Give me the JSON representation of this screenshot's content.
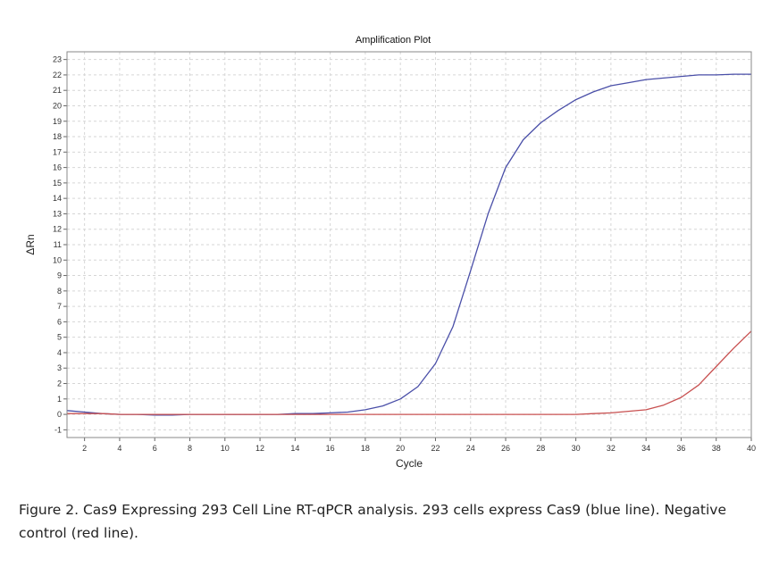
{
  "chart_data": {
    "type": "line",
    "title": "Amplification Plot",
    "xlabel": "Cycle",
    "ylabel": "ΔRn",
    "xlim": [
      1,
      40
    ],
    "ylim": [
      -1.5,
      23.5
    ],
    "xticks": [
      2,
      4,
      6,
      8,
      10,
      12,
      14,
      16,
      18,
      20,
      22,
      24,
      26,
      28,
      30,
      32,
      34,
      36,
      38,
      40
    ],
    "yticks": [
      -1,
      0,
      1,
      2,
      3,
      4,
      5,
      6,
      7,
      8,
      9,
      10,
      11,
      12,
      13,
      14,
      15,
      16,
      17,
      18,
      19,
      20,
      21,
      22,
      23
    ],
    "grid": true,
    "x": [
      1,
      2,
      3,
      4,
      5,
      6,
      7,
      8,
      9,
      10,
      11,
      12,
      13,
      14,
      15,
      16,
      17,
      18,
      19,
      20,
      21,
      22,
      23,
      24,
      25,
      26,
      27,
      28,
      29,
      30,
      31,
      32,
      33,
      34,
      35,
      36,
      37,
      38,
      39,
      40
    ],
    "series": [
      {
        "color": "#4a4fa8",
        "values": [
          0.25,
          0.15,
          0.05,
          0.0,
          0.0,
          -0.05,
          -0.05,
          0.0,
          0.0,
          0.0,
          0.0,
          0.0,
          0.0,
          0.05,
          0.05,
          0.1,
          0.15,
          0.3,
          0.55,
          1.0,
          1.8,
          3.3,
          5.7,
          9.3,
          13.0,
          16.0,
          17.8,
          18.9,
          19.7,
          20.4,
          20.9,
          21.3,
          21.5,
          21.7,
          21.8,
          21.9,
          22.0,
          22.0,
          22.05,
          22.05
        ]
      },
      {
        "color": "#c85050",
        "values": [
          0.05,
          0.05,
          0.05,
          0.0,
          0.0,
          0.0,
          0.0,
          0.0,
          0.0,
          0.0,
          0.0,
          0.0,
          0.0,
          0.0,
          0.0,
          0.0,
          0.0,
          0.0,
          0.0,
          0.0,
          0.0,
          0.0,
          0.0,
          0.0,
          0.0,
          0.0,
          0.0,
          0.0,
          0.0,
          0.0,
          0.05,
          0.1,
          0.2,
          0.3,
          0.6,
          1.1,
          1.9,
          3.1,
          4.3,
          5.4
        ]
      }
    ]
  },
  "caption": {
    "line1": "Figure 2. Cas9 Expressing  293 Cell Line RT-qPCR analysis.  293 cells express Cas9 (blue line).  Negative",
    "line2": "control (red line)."
  }
}
